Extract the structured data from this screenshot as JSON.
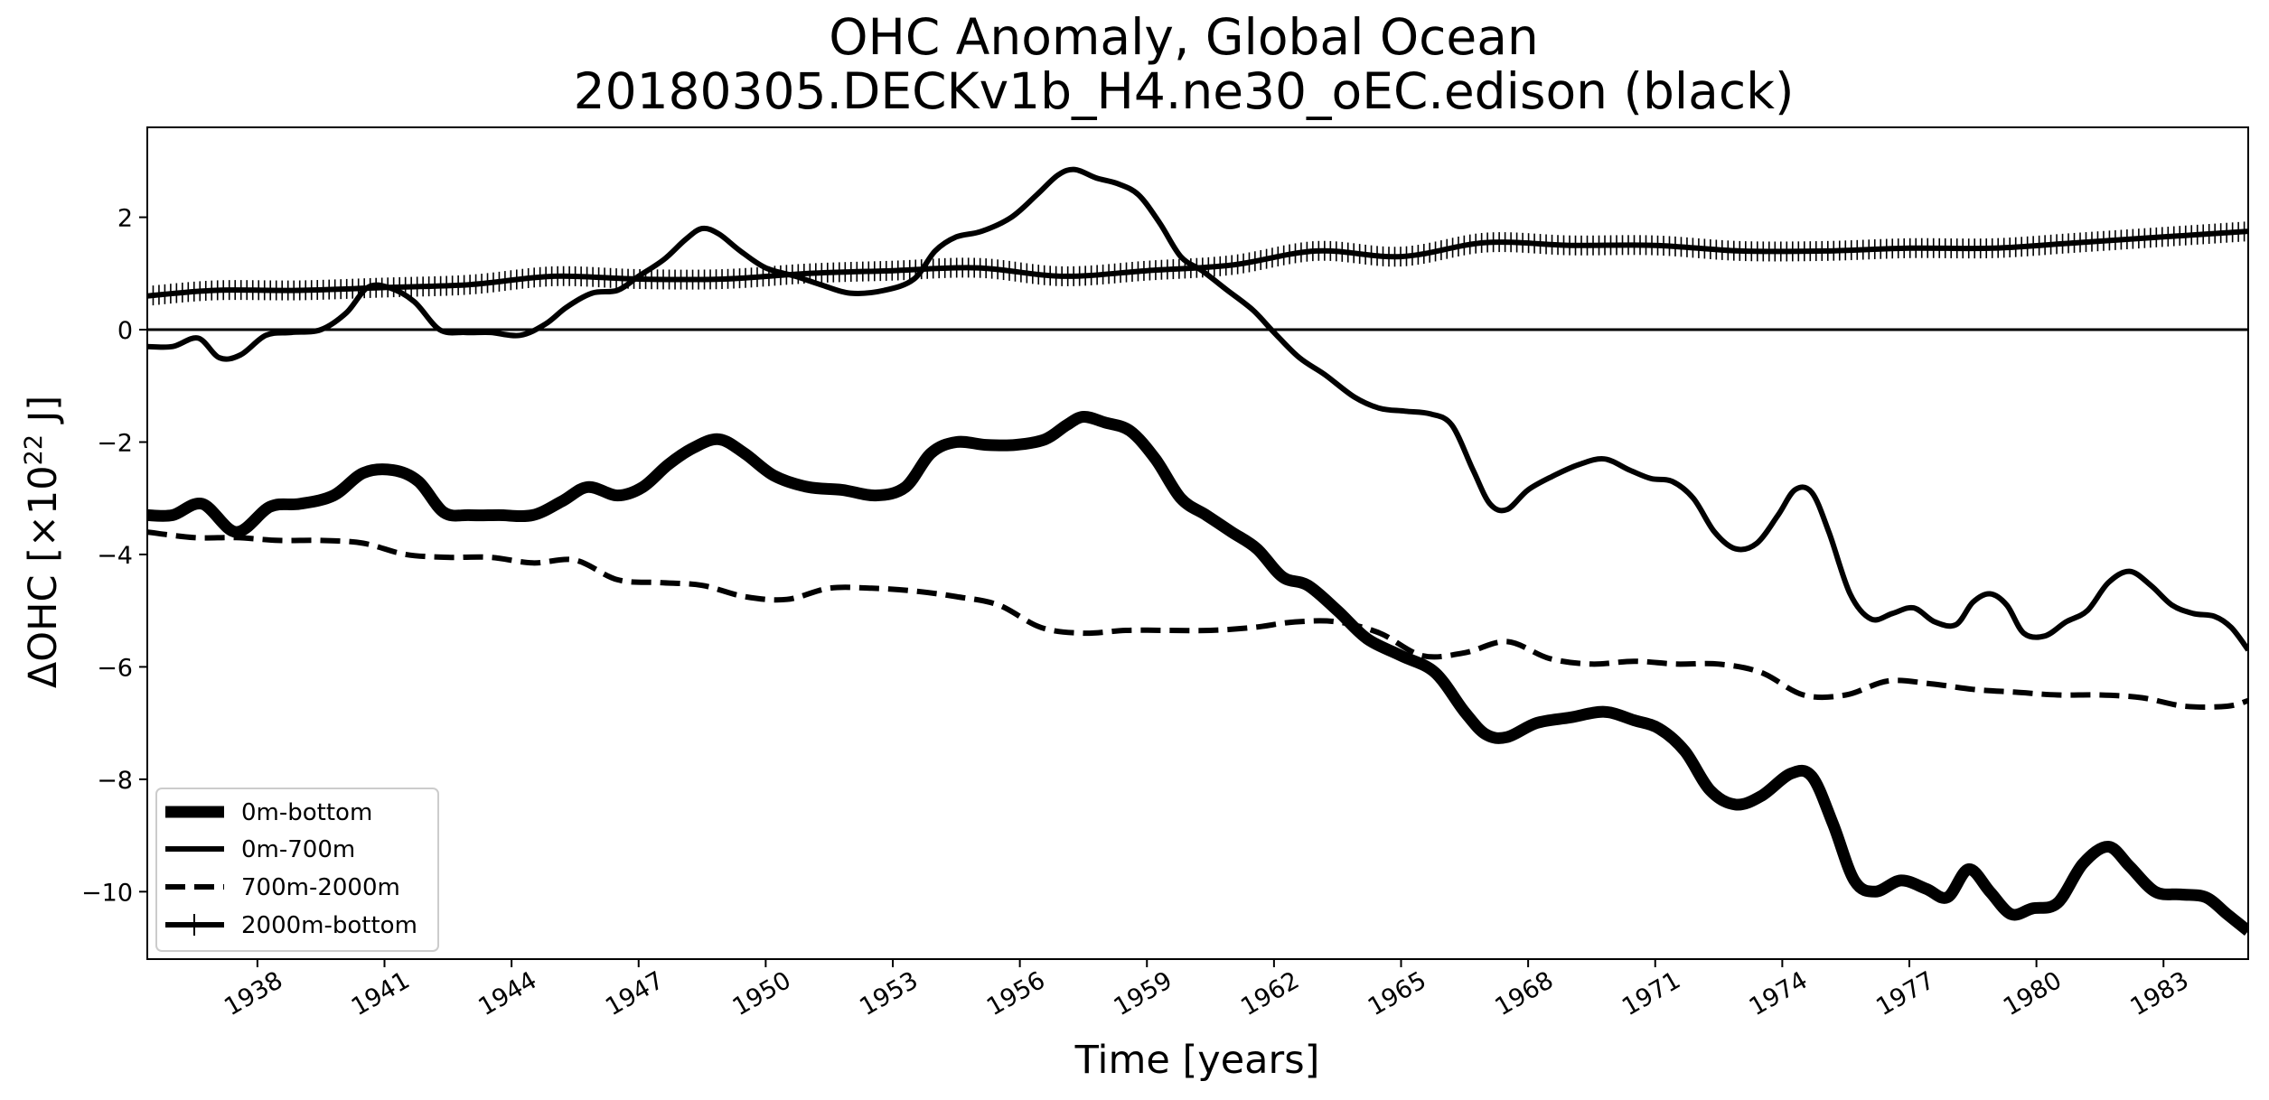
{
  "chart_data": {
    "type": "line",
    "title": "OHC Anomaly, Global Ocean",
    "subtitle": "20180305.DECKv1b_H4.ne30_oEC.edison (black)",
    "xlabel": "Time [years]",
    "ylabel_prefix": "ΔOHC [×10",
    "ylabel_exp": "22",
    "ylabel_suffix": " J]",
    "xlim": [
      1935.4,
      1985.0
    ],
    "ylim": [
      -11.2,
      3.6
    ],
    "xticks": [
      "1938",
      "1941",
      "1944",
      "1947",
      "1950",
      "1953",
      "1956",
      "1959",
      "1962",
      "1965",
      "1968",
      "1971",
      "1974",
      "1977",
      "1980",
      "1983"
    ],
    "yticks": [
      "2",
      "0",
      "−2",
      "−4",
      "−6",
      "−8",
      "−10"
    ],
    "zero_line": true,
    "legend_position": "lower-left",
    "series": [
      {
        "name": "0m-bottom",
        "style": "thick",
        "x": [
          1935.4,
          1936.0,
          1936.7,
          1937.5,
          1938.3,
          1939.0,
          1939.8,
          1940.5,
          1941.2,
          1941.8,
          1942.4,
          1943.0,
          1943.7,
          1944.5,
          1945.2,
          1945.8,
          1946.5,
          1947.1,
          1947.7,
          1948.3,
          1948.9,
          1949.5,
          1950.2,
          1951.0,
          1951.8,
          1952.6,
          1953.3,
          1953.9,
          1954.5,
          1955.2,
          1955.9,
          1956.6,
          1957.1,
          1957.5,
          1958.0,
          1958.6,
          1959.2,
          1959.8,
          1960.4,
          1961.0,
          1961.6,
          1962.2,
          1962.8,
          1963.5,
          1964.2,
          1965.0,
          1965.8,
          1966.5,
          1967.0,
          1967.5,
          1968.2,
          1969.0,
          1969.8,
          1970.5,
          1971.1,
          1971.7,
          1972.3,
          1972.9,
          1973.5,
          1974.2,
          1974.7,
          1975.2,
          1975.7,
          1976.2,
          1976.8,
          1977.4,
          1977.9,
          1978.4,
          1978.9,
          1979.4,
          1979.9,
          1980.5,
          1981.1,
          1981.7,
          1982.2,
          1982.8,
          1983.4,
          1984.0,
          1984.5,
          1985.0
        ],
        "values": [
          -3.3,
          -3.3,
          -3.1,
          -3.6,
          -3.15,
          -3.1,
          -2.95,
          -2.55,
          -2.5,
          -2.7,
          -3.25,
          -3.3,
          -3.3,
          -3.3,
          -3.05,
          -2.8,
          -2.95,
          -2.8,
          -2.4,
          -2.1,
          -1.95,
          -2.2,
          -2.6,
          -2.8,
          -2.85,
          -2.95,
          -2.8,
          -2.2,
          -2.0,
          -2.05,
          -2.05,
          -1.95,
          -1.7,
          -1.55,
          -1.65,
          -1.8,
          -2.3,
          -3.0,
          -3.3,
          -3.6,
          -3.9,
          -4.4,
          -4.55,
          -5.0,
          -5.5,
          -5.8,
          -6.1,
          -6.8,
          -7.2,
          -7.25,
          -7.0,
          -6.9,
          -6.8,
          -6.95,
          -7.1,
          -7.5,
          -8.2,
          -8.45,
          -8.3,
          -7.9,
          -7.95,
          -8.8,
          -9.8,
          -10.0,
          -9.8,
          -9.95,
          -10.1,
          -9.6,
          -10.0,
          -10.4,
          -10.3,
          -10.2,
          -9.5,
          -9.2,
          -9.55,
          -10.0,
          -10.05,
          -10.1,
          -10.4,
          -10.7
        ]
      },
      {
        "name": "0m-700m",
        "style": "solid",
        "x": [
          1935.4,
          1936.0,
          1936.6,
          1937.1,
          1937.6,
          1938.2,
          1938.8,
          1939.5,
          1940.1,
          1940.6,
          1941.1,
          1941.7,
          1942.3,
          1942.9,
          1943.5,
          1944.2,
          1944.8,
          1945.3,
          1945.9,
          1946.5,
          1947.0,
          1947.6,
          1948.1,
          1948.5,
          1948.9,
          1949.4,
          1950.0,
          1950.7,
          1951.3,
          1952.0,
          1952.8,
          1953.5,
          1954.0,
          1954.5,
          1955.1,
          1955.8,
          1956.4,
          1956.9,
          1957.3,
          1957.8,
          1958.3,
          1958.8,
          1959.3,
          1959.8,
          1960.3,
          1960.9,
          1961.5,
          1962.0,
          1962.6,
          1963.2,
          1963.9,
          1964.5,
          1965.1,
          1965.7,
          1966.2,
          1966.7,
          1967.1,
          1967.5,
          1968.0,
          1968.6,
          1969.2,
          1969.8,
          1970.4,
          1970.9,
          1971.4,
          1971.9,
          1972.4,
          1972.9,
          1973.4,
          1973.9,
          1974.3,
          1974.7,
          1975.1,
          1975.6,
          1976.1,
          1976.6,
          1977.1,
          1977.6,
          1978.1,
          1978.5,
          1978.9,
          1979.3,
          1979.7,
          1980.2,
          1980.7,
          1981.2,
          1981.7,
          1982.2,
          1982.7,
          1983.2,
          1983.7,
          1984.2,
          1984.6,
          1985.0
        ],
        "values": [
          -0.3,
          -0.3,
          -0.15,
          -0.5,
          -0.45,
          -0.1,
          -0.05,
          0.0,
          0.3,
          0.75,
          0.75,
          0.5,
          0.0,
          -0.05,
          -0.05,
          -0.1,
          0.1,
          0.4,
          0.65,
          0.7,
          0.95,
          1.25,
          1.6,
          1.8,
          1.7,
          1.4,
          1.1,
          0.95,
          0.8,
          0.65,
          0.7,
          0.9,
          1.4,
          1.65,
          1.75,
          2.0,
          2.4,
          2.75,
          2.85,
          2.7,
          2.6,
          2.4,
          1.9,
          1.3,
          1.05,
          0.7,
          0.35,
          -0.05,
          -0.5,
          -0.8,
          -1.2,
          -1.4,
          -1.45,
          -1.5,
          -1.7,
          -2.5,
          -3.1,
          -3.2,
          -2.85,
          -2.6,
          -2.4,
          -2.3,
          -2.5,
          -2.65,
          -2.7,
          -3.0,
          -3.6,
          -3.9,
          -3.8,
          -3.3,
          -2.85,
          -2.9,
          -3.6,
          -4.7,
          -5.15,
          -5.05,
          -4.95,
          -5.2,
          -5.25,
          -4.85,
          -4.7,
          -4.9,
          -5.4,
          -5.45,
          -5.2,
          -5.0,
          -4.5,
          -4.3,
          -4.55,
          -4.9,
          -5.05,
          -5.1,
          -5.3,
          -5.7
        ]
      },
      {
        "name": "700m-2000m",
        "style": "dashed",
        "x": [
          1935.4,
          1936.5,
          1937.5,
          1938.5,
          1939.5,
          1940.5,
          1941.5,
          1942.5,
          1943.5,
          1944.5,
          1945.5,
          1946.5,
          1947.5,
          1948.5,
          1949.5,
          1950.5,
          1951.5,
          1952.5,
          1953.5,
          1954.5,
          1955.5,
          1956.5,
          1957.5,
          1958.5,
          1959.5,
          1960.5,
          1961.5,
          1962.5,
          1963.5,
          1964.5,
          1965.5,
          1966.5,
          1967.5,
          1968.5,
          1969.5,
          1970.5,
          1971.5,
          1972.5,
          1973.5,
          1974.5,
          1975.5,
          1976.5,
          1977.5,
          1978.5,
          1979.5,
          1980.5,
          1981.5,
          1982.5,
          1983.5,
          1984.5,
          1985.0
        ],
        "values": [
          -3.6,
          -3.7,
          -3.7,
          -3.75,
          -3.75,
          -3.8,
          -4.0,
          -4.05,
          -4.05,
          -4.15,
          -4.1,
          -4.45,
          -4.5,
          -4.55,
          -4.75,
          -4.8,
          -4.6,
          -4.6,
          -4.65,
          -4.75,
          -4.9,
          -5.3,
          -5.4,
          -5.35,
          -5.35,
          -5.35,
          -5.3,
          -5.2,
          -5.2,
          -5.4,
          -5.8,
          -5.75,
          -5.55,
          -5.85,
          -5.95,
          -5.9,
          -5.95,
          -5.95,
          -6.1,
          -6.5,
          -6.5,
          -6.25,
          -6.3,
          -6.4,
          -6.45,
          -6.5,
          -6.5,
          -6.55,
          -6.7,
          -6.7,
          -6.6
        ]
      },
      {
        "name": "2000m-bottom",
        "style": "plus",
        "x": [
          1935.4,
          1937.0,
          1939.0,
          1941.0,
          1943.0,
          1945.0,
          1947.0,
          1949.0,
          1951.0,
          1953.0,
          1955.0,
          1957.0,
          1959.0,
          1961.0,
          1963.0,
          1965.0,
          1967.0,
          1969.0,
          1971.0,
          1973.0,
          1975.0,
          1977.0,
          1979.0,
          1981.0,
          1983.0,
          1985.0
        ],
        "values": [
          0.6,
          0.7,
          0.7,
          0.75,
          0.8,
          0.95,
          0.9,
          0.9,
          1.0,
          1.05,
          1.1,
          0.95,
          1.05,
          1.15,
          1.4,
          1.3,
          1.55,
          1.5,
          1.5,
          1.4,
          1.4,
          1.45,
          1.45,
          1.55,
          1.65,
          1.75
        ]
      }
    ]
  }
}
